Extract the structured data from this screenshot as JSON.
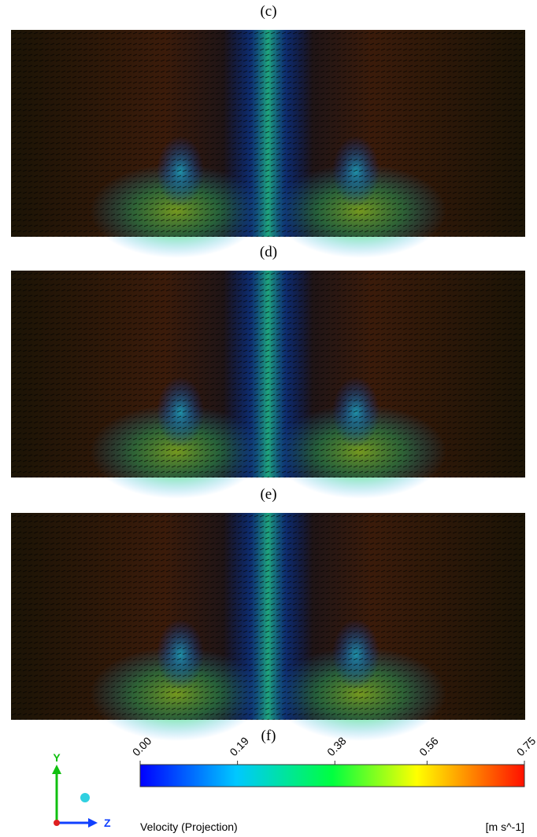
{
  "panels": [
    {
      "label": "(c)"
    },
    {
      "label": "(d)"
    },
    {
      "label": "(e)"
    },
    {
      "label": "(f)"
    }
  ],
  "axes": {
    "y": "Y",
    "z": "Z"
  },
  "colorbar": {
    "title": "Velocity (Projection)",
    "units": "[m s^-1]",
    "range": [
      0,
      0.75
    ],
    "ticks": [
      {
        "value": 0,
        "label": "0.00"
      },
      {
        "value": 0.19,
        "label": "0.19"
      },
      {
        "value": 0.38,
        "label": "0.38"
      },
      {
        "value": 0.56,
        "label": "0.56"
      },
      {
        "value": 0.75,
        "label": "0.75"
      }
    ]
  }
}
